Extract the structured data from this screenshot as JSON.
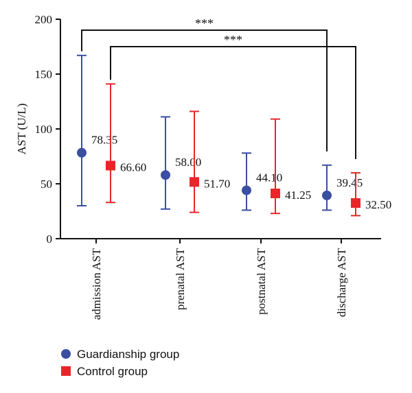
{
  "chart_data": {
    "type": "scatter",
    "title": "",
    "xlabel": "",
    "ylabel": "AST (U/L)",
    "ylim": [
      0,
      200
    ],
    "yticks": [
      0,
      50,
      100,
      150,
      200
    ],
    "categories": [
      "admission AST",
      "prenatal AST",
      "postnatal AST",
      "discharge AST"
    ],
    "series": [
      {
        "name": "Guardianship group",
        "marker": "circle",
        "color": "#3a4fa0",
        "values": [
          78.35,
          58.0,
          44.1,
          39.45
        ],
        "labels": [
          "78.35",
          "58.00",
          "44.10",
          "39.45"
        ],
        "err_low": [
          30,
          27,
          26,
          26
        ],
        "err_high": [
          167,
          111,
          78,
          67
        ]
      },
      {
        "name": "Control group",
        "marker": "square",
        "color": "#e8262a",
        "values": [
          66.6,
          51.7,
          41.25,
          32.5
        ],
        "labels": [
          "66.60",
          "51.70",
          "41.25",
          "32.50"
        ],
        "err_low": [
          33,
          24,
          23,
          21
        ],
        "err_high": [
          141,
          116,
          109,
          60
        ]
      }
    ],
    "significance": [
      {
        "label": "***",
        "from_category": 0,
        "to_category": 3,
        "series": "Guardianship group",
        "level": 190
      },
      {
        "label": "***",
        "from_category": 0,
        "to_category": 3,
        "series": "Control group",
        "level": 175
      }
    ],
    "legend_position": "bottom-left",
    "grid": false
  }
}
